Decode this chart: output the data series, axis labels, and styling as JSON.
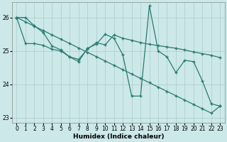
{
  "xlabel": "Humidex (Indice chaleur)",
  "background_color": "#cce8e8",
  "grid_color": "#aacccc",
  "line_color": "#2a7a72",
  "ylim": [
    22.85,
    26.45
  ],
  "yticks": [
    23,
    24,
    25,
    26
  ],
  "xlim": [
    -0.5,
    23.5
  ],
  "xticks": [
    0,
    1,
    2,
    3,
    4,
    5,
    6,
    7,
    8,
    9,
    10,
    11,
    12,
    13,
    14,
    15,
    16,
    17,
    18,
    19,
    20,
    21,
    22,
    23
  ],
  "s1_y": [
    26.0,
    26.0,
    25.75,
    25.55,
    25.15,
    25.03,
    24.82,
    24.68,
    25.08,
    25.2,
    25.5,
    25.38,
    24.88,
    23.65,
    23.65,
    26.35,
    25.0,
    24.82,
    24.35,
    24.72,
    24.68,
    24.1,
    23.42,
    23.35
  ],
  "s2_y": [
    26.0,
    25.22,
    25.22,
    25.17,
    25.05,
    25.0,
    24.82,
    24.75,
    25.05,
    25.25,
    25.18,
    25.48,
    25.38,
    25.32,
    25.25,
    25.2,
    25.16,
    25.12,
    25.08,
    25.03,
    24.97,
    24.92,
    24.87,
    24.8
  ],
  "s3_y": [
    26.0,
    25.87,
    25.74,
    25.61,
    25.48,
    25.35,
    25.22,
    25.09,
    24.96,
    24.83,
    24.7,
    24.57,
    24.44,
    24.31,
    24.18,
    24.05,
    23.92,
    23.79,
    23.66,
    23.53,
    23.4,
    23.27,
    23.14,
    23.35
  ]
}
